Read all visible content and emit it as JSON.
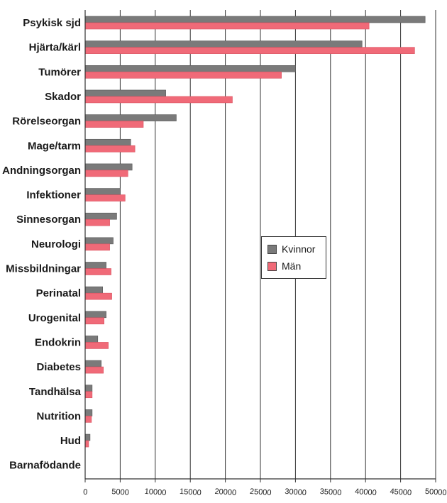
{
  "chart_data": {
    "type": "bar",
    "orientation": "horizontal",
    "title": "",
    "xlabel": "",
    "ylabel": "",
    "xlim": [
      0,
      50000
    ],
    "x_ticks": [
      "0",
      "5000",
      "10000",
      "15000",
      "20000",
      "25000",
      "30000",
      "35000",
      "40000",
      "45000",
      "50000"
    ],
    "grid": "vertical",
    "legend_placement": "center-right",
    "categories": [
      "Psykisk sjd",
      "Hjärta/kärl",
      "Tumörer",
      "Skador",
      "Rörelseorgan",
      "Mage/tarm",
      "Andningsorgan",
      "Infektioner",
      "Sinnesorgan",
      "Neurologi",
      "Missbildningar",
      "Perinatal",
      "Urogenital",
      "Endokrin",
      "Diabetes",
      "Tandhälsa",
      "Nutrition",
      "Hud",
      "Barnafödande"
    ],
    "series": [
      {
        "name": "Kvinnor",
        "color": "#7a7a7a",
        "values": [
          48500,
          39500,
          30000,
          11500,
          13000,
          6500,
          6700,
          5000,
          4500,
          4000,
          3000,
          2500,
          3000,
          1800,
          2300,
          1000,
          1000,
          700,
          0
        ]
      },
      {
        "name": "Män",
        "color": "#f06a78",
        "values": [
          40500,
          47000,
          28000,
          21000,
          8300,
          7100,
          6100,
          5700,
          3500,
          3500,
          3700,
          3800,
          2700,
          3300,
          2600,
          1000,
          900,
          500,
          0
        ]
      }
    ]
  }
}
